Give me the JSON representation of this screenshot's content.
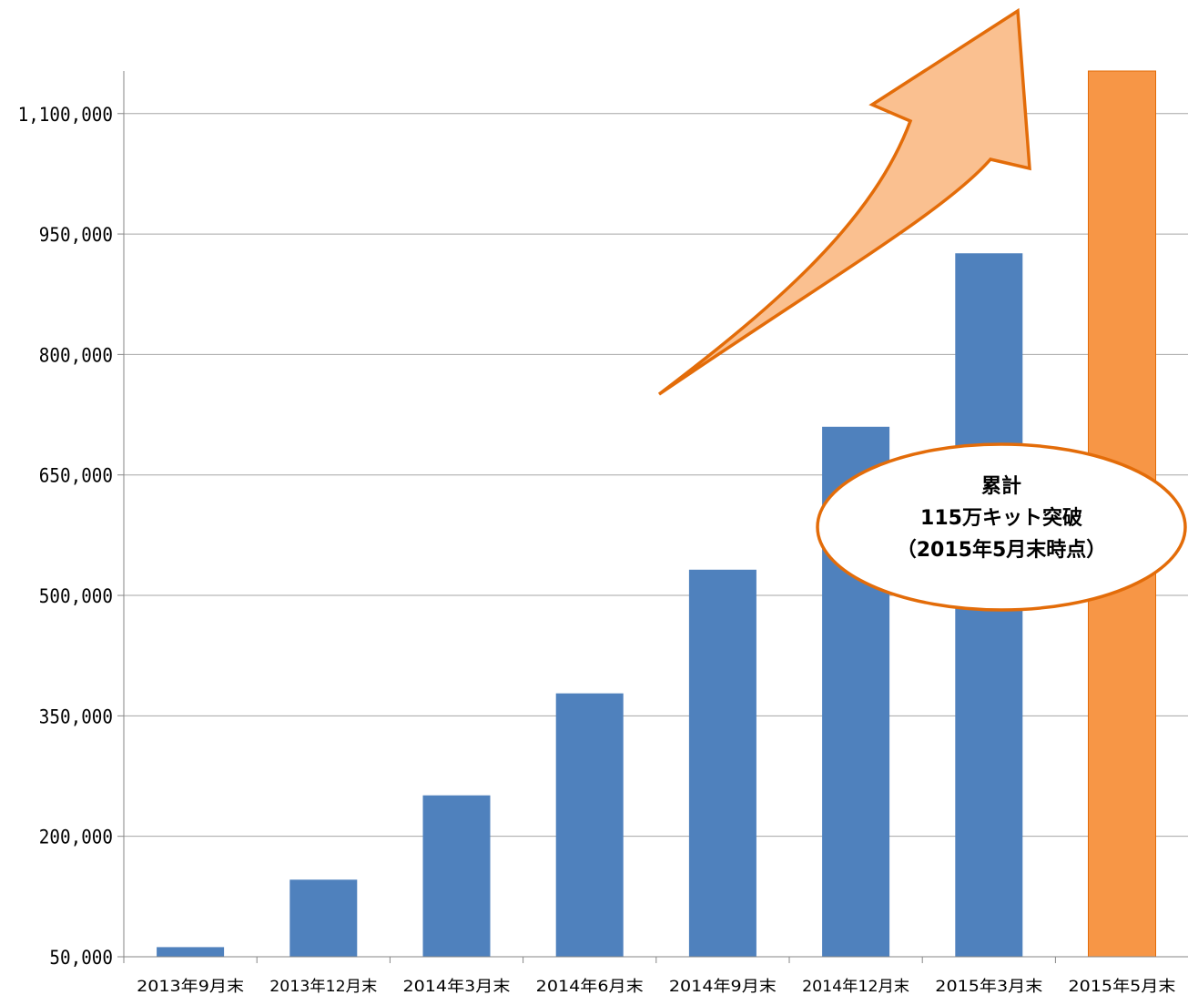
{
  "chart_data": {
    "type": "bar",
    "title": "",
    "xlabel": "",
    "ylabel": "",
    "categories": [
      "2013年9月末",
      "2013年12月末",
      "2014年3月末",
      "2014年6月末",
      "2014年9月末",
      "2014年12月末",
      "2015年3月末",
      "2015年5月末"
    ],
    "values": [
      62000,
      146000,
      251000,
      378000,
      532000,
      710000,
      926000,
      1153000
    ],
    "bar_colors": [
      "#4F81BD",
      "#4F81BD",
      "#4F81BD",
      "#4F81BD",
      "#4F81BD",
      "#4F81BD",
      "#4F81BD",
      "#F79646"
    ],
    "ylim": [
      50000,
      1153000
    ],
    "yticks": [
      50000,
      200000,
      350000,
      500000,
      650000,
      800000,
      950000,
      1100000
    ],
    "ytick_labels": [
      "50,000",
      "200,000",
      "350,000",
      "500,000",
      "650,000",
      "800,000",
      "950,000",
      "1,100,000"
    ],
    "grid": true,
    "legend": "none"
  },
  "callout": {
    "lines": [
      "累計",
      "115万キット突破",
      "（2015年5月末時点）"
    ],
    "fill": "#FFFFFF",
    "stroke": "#E36C09"
  },
  "arrow": {
    "fill": "#FAC090",
    "stroke": "#E36C09"
  },
  "colors": {
    "gridline": "#A6A6A6",
    "axis": "#868686"
  }
}
